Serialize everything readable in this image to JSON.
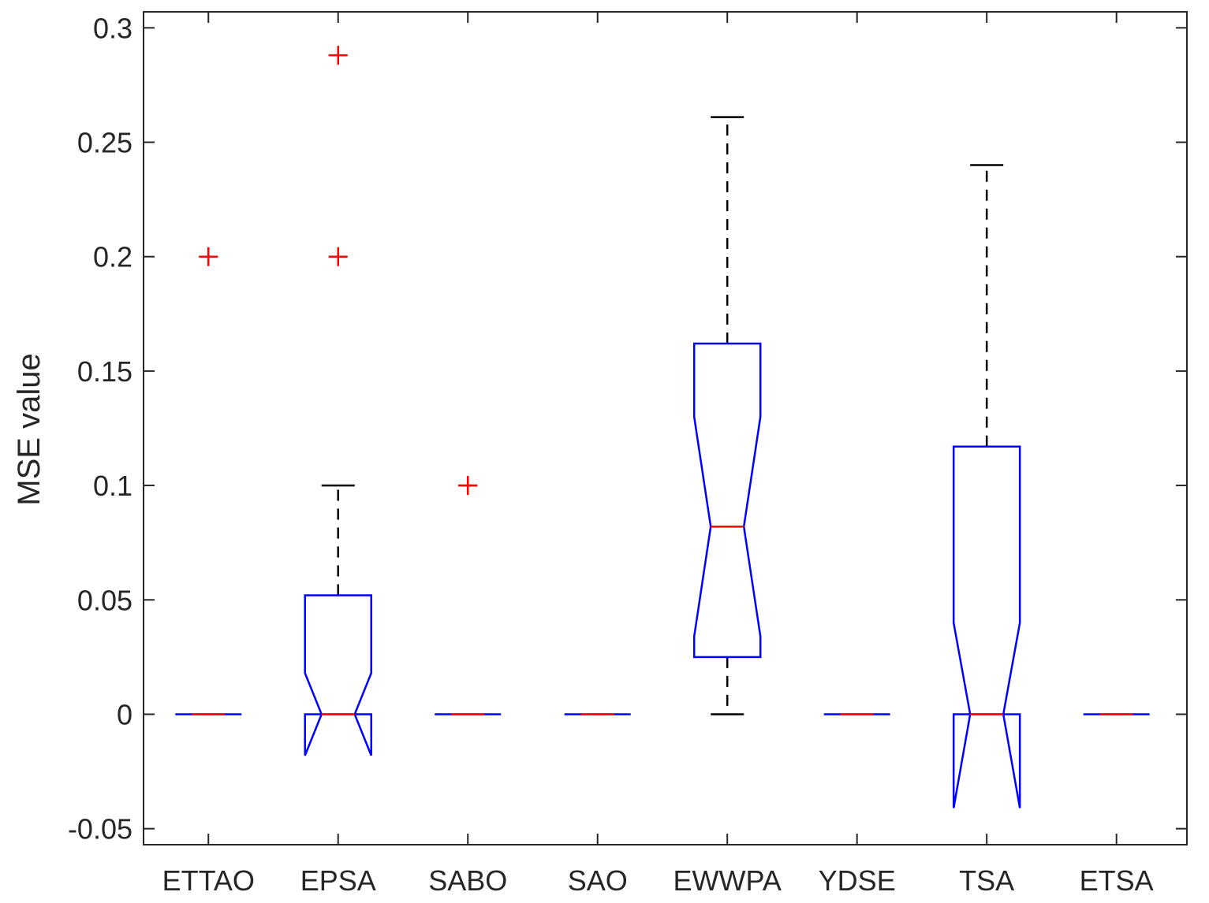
{
  "chart_data": {
    "type": "boxplot",
    "title": "",
    "xlabel": "",
    "ylabel": "MSE value",
    "ylim": [
      -0.057,
      0.307
    ],
    "yticks": [
      -0.05,
      0,
      0.05,
      0.1,
      0.15,
      0.2,
      0.25,
      0.3
    ],
    "ytick_labels": [
      "-0.05",
      "0",
      "0.05",
      "0.1",
      "0.15",
      "0.2",
      "0.25",
      "0.3"
    ],
    "notched": true,
    "colors": {
      "box": "#0000ff",
      "median": "#ff0000",
      "whisker": "#000000",
      "outlier": "#ff0000",
      "axis": "#262626"
    },
    "categories": [
      "ETTAO",
      "EPSA",
      "SABO",
      "SAO",
      "EWWPA",
      "YDSE",
      "TSA",
      "ETSA"
    ],
    "boxes": [
      {
        "label": "ETTAO",
        "q1": 0,
        "median": 0,
        "q3": 0,
        "notch_low": 0,
        "notch_high": 0,
        "whisker_low": 0,
        "whisker_high": 0,
        "outliers": [
          0.2
        ]
      },
      {
        "label": "EPSA",
        "q1": 0,
        "median": 0,
        "q3": 0.052,
        "notch_low": -0.018,
        "notch_high": 0.018,
        "whisker_low": 0,
        "whisker_high": 0.1,
        "outliers": [
          0.2,
          0.288
        ]
      },
      {
        "label": "SABO",
        "q1": 0,
        "median": 0,
        "q3": 0,
        "notch_low": 0,
        "notch_high": 0,
        "whisker_low": 0,
        "whisker_high": 0,
        "outliers": [
          0.1,
          0.1
        ]
      },
      {
        "label": "SAO",
        "q1": 0,
        "median": 0,
        "q3": 0,
        "notch_low": 0,
        "notch_high": 0,
        "whisker_low": 0,
        "whisker_high": 0,
        "outliers": []
      },
      {
        "label": "EWWPA",
        "q1": 0.025,
        "median": 0.082,
        "q3": 0.162,
        "notch_low": 0.034,
        "notch_high": 0.13,
        "whisker_low": 0,
        "whisker_high": 0.261,
        "outliers": []
      },
      {
        "label": "YDSE",
        "q1": 0,
        "median": 0,
        "q3": 0,
        "notch_low": 0,
        "notch_high": 0,
        "whisker_low": 0,
        "whisker_high": 0,
        "outliers": []
      },
      {
        "label": "TSA",
        "q1": 0,
        "median": 0,
        "q3": 0.117,
        "notch_low": -0.041,
        "notch_high": 0.04,
        "whisker_low": 0,
        "whisker_high": 0.24,
        "outliers": []
      },
      {
        "label": "ETSA",
        "q1": 0,
        "median": 0,
        "q3": 0,
        "notch_low": 0,
        "notch_high": 0,
        "whisker_low": 0,
        "whisker_high": 0,
        "outliers": []
      }
    ]
  }
}
